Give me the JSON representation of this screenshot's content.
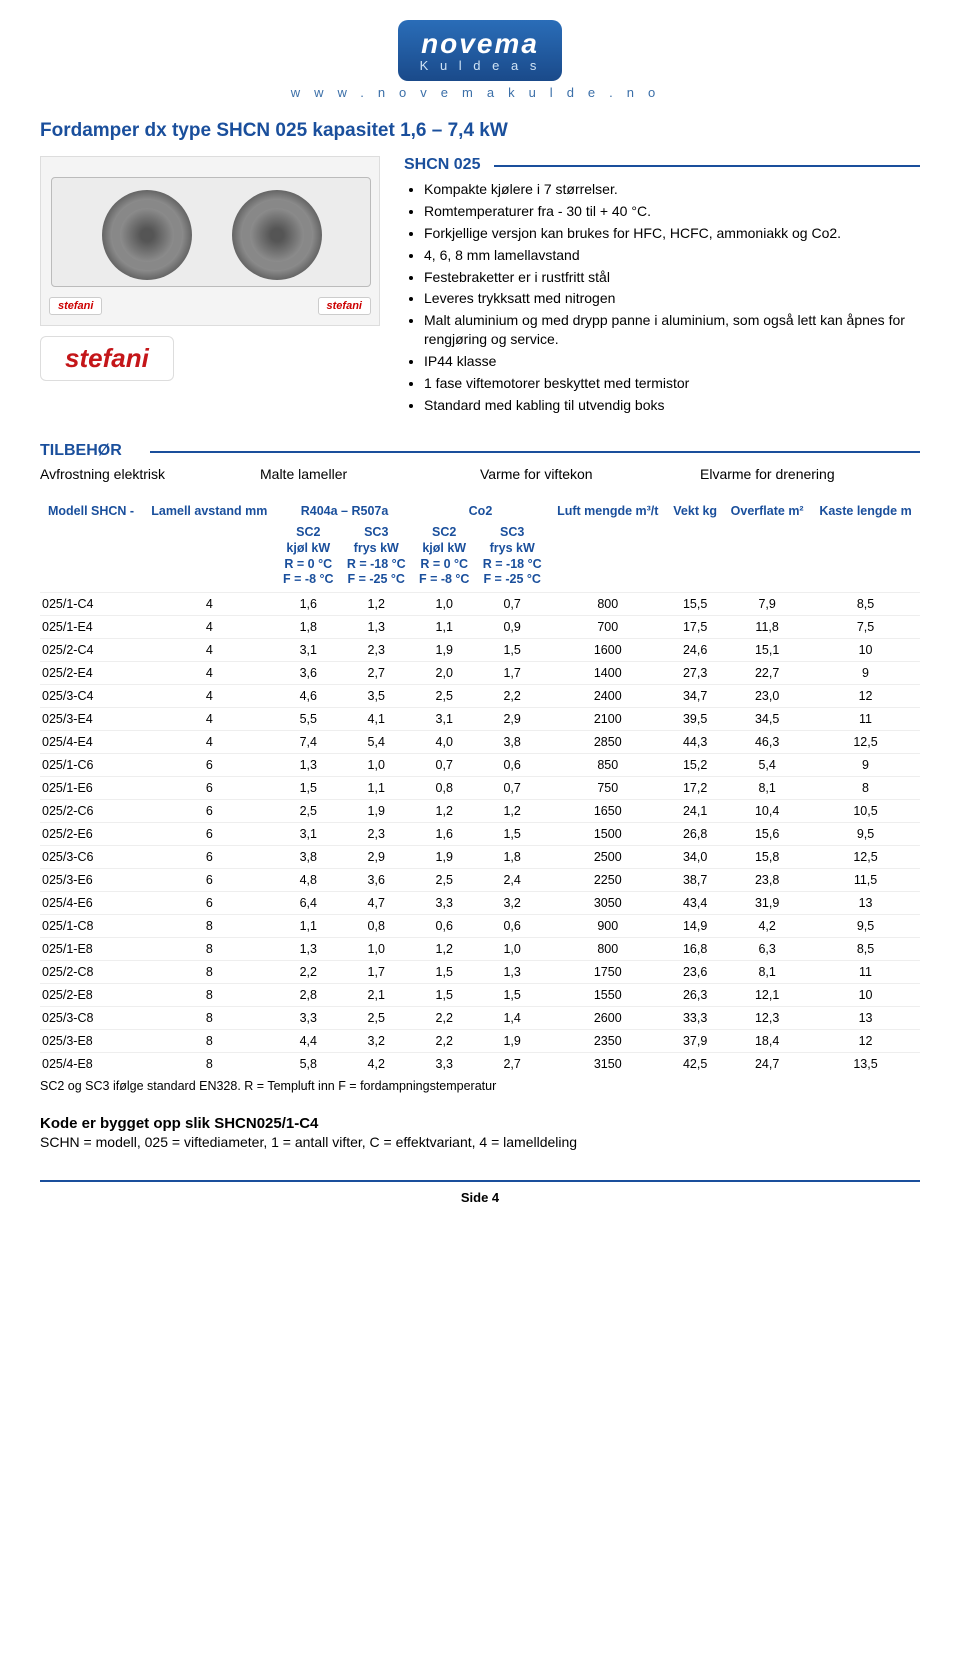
{
  "logo": {
    "line1": "novema",
    "line2": "K u l d e a s"
  },
  "url": "www.novemakulde.no",
  "title": "Fordamper dx type SHCN 025 kapasitet 1,6 – 7,4 kW",
  "brand": "stefani",
  "spec": {
    "heading": "SHCN 025",
    "bullets": [
      "Kompakte kjølere i 7 størrelser.",
      "Romtemperaturer fra - 30 til + 40 °C.",
      "Forkjellige versjon kan brukes for HFC, HCFC, ammoniakk og Co2.",
      "4, 6, 8 mm lamellavstand",
      "Festebraketter er i rustfritt stål",
      "Leveres trykksatt med nitrogen",
      "Malt aluminium og med drypp panne i aluminium, som også lett kan åpnes for rengjøring og service.",
      "IP44 klasse",
      "1 fase viftemotorer beskyttet med termistor",
      "Standard med kabling til utvendig boks"
    ]
  },
  "tilbehor": {
    "heading": "TILBEHØR",
    "items": [
      "Avfrostning elektrisk",
      "Malte lameller",
      "Varme for viftekon",
      "Elvarme for drenering"
    ]
  },
  "table": {
    "group1": "R404a – R507a",
    "group2": "Co2",
    "columns": {
      "model": "Modell SHCN -",
      "lamell": "Lamell avstand mm",
      "sc2_1": {
        "l1": "SC2",
        "l2": "kjøl kW",
        "l3": "R = 0 °C",
        "l4": "F = -8 °C"
      },
      "sc3_1": {
        "l1": "SC3",
        "l2": "frys kW",
        "l3": "R = -18 °C",
        "l4": "F = -25 °C"
      },
      "sc2_2": {
        "l1": "SC2",
        "l2": "kjøl kW",
        "l3": "R = 0 °C",
        "l4": "F = -8 °C"
      },
      "sc3_2": {
        "l1": "SC3",
        "l2": "frys kW",
        "l3": "R = -18 °C",
        "l4": "F = -25 °C"
      },
      "luft": "Luft mengde m³/t",
      "vekt": "Vekt kg",
      "overfl": "Overflate m²",
      "kaste": "Kaste lengde m"
    },
    "rows": [
      [
        "025/1-C4",
        "4",
        "1,6",
        "1,2",
        "1,0",
        "0,7",
        "800",
        "15,5",
        "7,9",
        "8,5"
      ],
      [
        "025/1-E4",
        "4",
        "1,8",
        "1,3",
        "1,1",
        "0,9",
        "700",
        "17,5",
        "11,8",
        "7,5"
      ],
      [
        "025/2-C4",
        "4",
        "3,1",
        "2,3",
        "1,9",
        "1,5",
        "1600",
        "24,6",
        "15,1",
        "10"
      ],
      [
        "025/2-E4",
        "4",
        "3,6",
        "2,7",
        "2,0",
        "1,7",
        "1400",
        "27,3",
        "22,7",
        "9"
      ],
      [
        "025/3-C4",
        "4",
        "4,6",
        "3,5",
        "2,5",
        "2,2",
        "2400",
        "34,7",
        "23,0",
        "12"
      ],
      [
        "025/3-E4",
        "4",
        "5,5",
        "4,1",
        "3,1",
        "2,9",
        "2100",
        "39,5",
        "34,5",
        "11"
      ],
      [
        "025/4-E4",
        "4",
        "7,4",
        "5,4",
        "4,0",
        "3,8",
        "2850",
        "44,3",
        "46,3",
        "12,5"
      ],
      [
        "025/1-C6",
        "6",
        "1,3",
        "1,0",
        "0,7",
        "0,6",
        "850",
        "15,2",
        "5,4",
        "9"
      ],
      [
        "025/1-E6",
        "6",
        "1,5",
        "1,1",
        "0,8",
        "0,7",
        "750",
        "17,2",
        "8,1",
        "8"
      ],
      [
        "025/2-C6",
        "6",
        "2,5",
        "1,9",
        "1,2",
        "1,2",
        "1650",
        "24,1",
        "10,4",
        "10,5"
      ],
      [
        "025/2-E6",
        "6",
        "3,1",
        "2,3",
        "1,6",
        "1,5",
        "1500",
        "26,8",
        "15,6",
        "9,5"
      ],
      [
        "025/3-C6",
        "6",
        "3,8",
        "2,9",
        "1,9",
        "1,8",
        "2500",
        "34,0",
        "15,8",
        "12,5"
      ],
      [
        "025/3-E6",
        "6",
        "4,8",
        "3,6",
        "2,5",
        "2,4",
        "2250",
        "38,7",
        "23,8",
        "11,5"
      ],
      [
        "025/4-E6",
        "6",
        "6,4",
        "4,7",
        "3,3",
        "3,2",
        "3050",
        "43,4",
        "31,9",
        "13"
      ],
      [
        "025/1-C8",
        "8",
        "1,1",
        "0,8",
        "0,6",
        "0,6",
        "900",
        "14,9",
        "4,2",
        "9,5"
      ],
      [
        "025/1-E8",
        "8",
        "1,3",
        "1,0",
        "1,2",
        "1,0",
        "800",
        "16,8",
        "6,3",
        "8,5"
      ],
      [
        "025/2-C8",
        "8",
        "2,2",
        "1,7",
        "1,5",
        "1,3",
        "1750",
        "23,6",
        "8,1",
        "11"
      ],
      [
        "025/2-E8",
        "8",
        "2,8",
        "2,1",
        "1,5",
        "1,5",
        "1550",
        "26,3",
        "12,1",
        "10"
      ],
      [
        "025/3-C8",
        "8",
        "3,3",
        "2,5",
        "2,2",
        "1,4",
        "2600",
        "33,3",
        "12,3",
        "13"
      ],
      [
        "025/3-E8",
        "8",
        "4,4",
        "3,2",
        "2,2",
        "1,9",
        "2350",
        "37,9",
        "18,4",
        "12"
      ],
      [
        "025/4-E8",
        "8",
        "5,8",
        "4,2",
        "3,3",
        "2,7",
        "3150",
        "42,5",
        "24,7",
        "13,5"
      ]
    ]
  },
  "footnote": "SC2 og SC3 ifølge standard EN328. R = Templuft inn F = fordampningstemperatur",
  "code": {
    "title": "Kode er bygget opp slik SHCN025/1-C4",
    "line": "SCHN = modell, 025 = viftediameter, 1 = antall vifter, C = effektvariant, 4 = lamelldeling"
  },
  "footer": "Side 4"
}
